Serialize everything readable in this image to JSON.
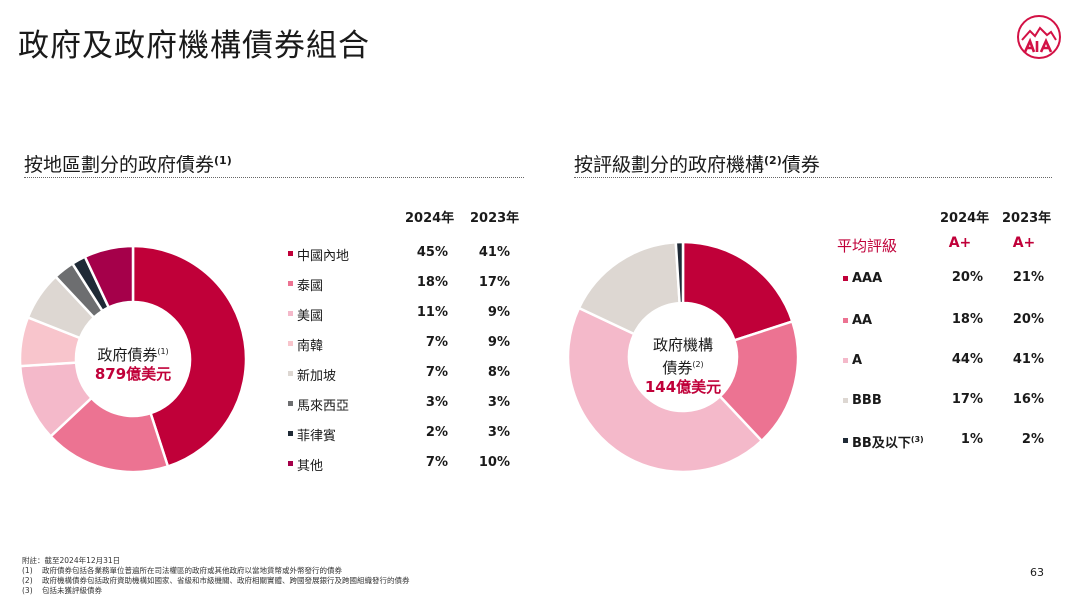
{
  "page_title": "政府及政府機構債券組合",
  "left": {
    "title": "按地區劃分的政府債券",
    "title_note": "(1)",
    "col_2024": "2024年",
    "col_2023": "2023年",
    "center_label": "政府債券",
    "center_note": "(1)",
    "center_amount": "879億美元",
    "rows": [
      {
        "label": "中國內地",
        "v2024": "45%",
        "v2023": "41%",
        "color": "#c00039"
      },
      {
        "label": "泰國",
        "v2024": "18%",
        "v2023": "17%",
        "color": "#ec7392"
      },
      {
        "label": "美國",
        "v2024": "11%",
        "v2023": "9%",
        "color": "#f4b9ca"
      },
      {
        "label": "南韓",
        "v2024": "7%",
        "v2023": "9%",
        "color": "#f8c5cc"
      },
      {
        "label": "新加坡",
        "v2024": "7%",
        "v2023": "8%",
        "color": "#ddd7d2"
      },
      {
        "label": "馬來西亞",
        "v2024": "3%",
        "v2023": "3%",
        "color": "#6d6e70"
      },
      {
        "label": "菲律賓",
        "v2024": "2%",
        "v2023": "3%",
        "color": "#1f2a36"
      },
      {
        "label": "其他",
        "v2024": "7%",
        "v2023": "10%",
        "color": "#a5004a"
      }
    ]
  },
  "right": {
    "title_a": "按評級劃分的政府機構",
    "title_note": "(2)",
    "title_b": "債券",
    "col_2024": "2024年",
    "col_2023": "2023年",
    "avg_label": "平均評級",
    "avg_2024": "A+",
    "avg_2023": "A+",
    "center_label_1": "政府機構",
    "center_label_2": "債券",
    "center_note": "(2)",
    "center_amount": "144億美元",
    "rows": [
      {
        "label": "AAA",
        "note": "",
        "v2024": "20%",
        "v2023": "21%",
        "color": "#c00039"
      },
      {
        "label": "AA",
        "note": "",
        "v2024": "18%",
        "v2023": "20%",
        "color": "#ec7392"
      },
      {
        "label": "A",
        "note": "",
        "v2024": "44%",
        "v2023": "41%",
        "color": "#f4b9ca"
      },
      {
        "label": "BBB",
        "note": "",
        "v2024": "17%",
        "v2023": "16%",
        "color": "#ddd7d2"
      },
      {
        "label": "BB及以下",
        "note": "(3)",
        "v2024": "1%",
        "v2023": "2%",
        "color": "#1f2a36"
      }
    ]
  },
  "footnotes": {
    "head": "附註：截至2024年12月31日",
    "items": [
      {
        "n": "(1)",
        "t": "政府債券包括各業務單位普遍所在司法權區的政府或其他政府以當地貨幣或外幣發行的債券"
      },
      {
        "n": "(2)",
        "t": "政府機構債券包括政府資助機構如國家、省級和市級機關、政府相關實體、跨國發展銀行及跨國組織發行的債券"
      },
      {
        "n": "(3)",
        "t": "包括未獲評級債券"
      }
    ]
  },
  "page_number": "63"
}
